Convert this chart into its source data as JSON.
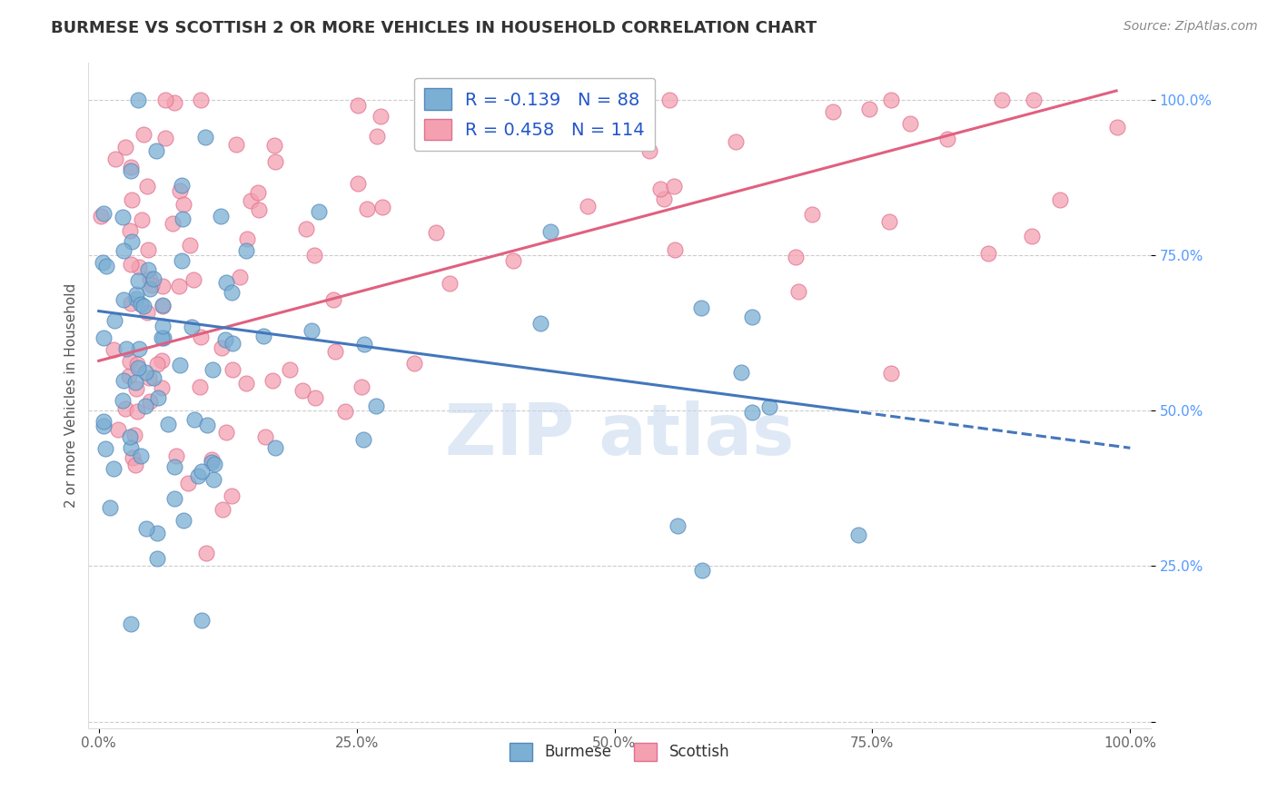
{
  "title": "BURMESE VS SCOTTISH 2 OR MORE VEHICLES IN HOUSEHOLD CORRELATION CHART",
  "source": "Source: ZipAtlas.com",
  "ylabel": "2 or more Vehicles in Household",
  "burmese_R": -0.139,
  "burmese_N": 88,
  "scottish_R": 0.458,
  "scottish_N": 114,
  "burmese_color": "#7BAFD4",
  "burmese_edge": "#5588BB",
  "scottish_color": "#F4A0B0",
  "scottish_edge": "#E07090",
  "line_burmese_color": "#4477BB",
  "line_scottish_color": "#E06080",
  "watermark_color": "#C5D8EE",
  "legend_labels": [
    "Burmese",
    "Scottish"
  ],
  "title_color": "#333333",
  "source_color": "#888888",
  "ytick_color": "#5599FF",
  "xtick_color": "#666666",
  "grid_color": "#CCCCCC",
  "ylabel_color": "#555555"
}
